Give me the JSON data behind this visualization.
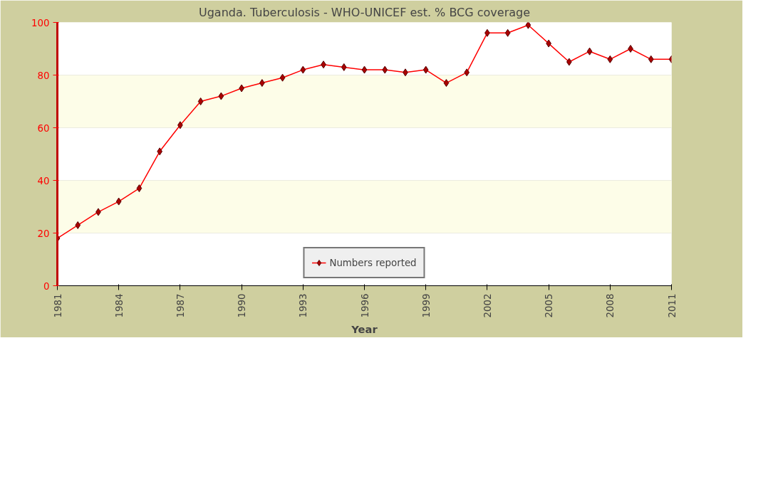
{
  "chart_data": {
    "type": "line",
    "title": "Uganda. Tuberculosis - WHO-UNICEF est. % BCG coverage",
    "xlabel": "Year",
    "x": [
      1981,
      1982,
      1983,
      1984,
      1985,
      1986,
      1987,
      1988,
      1989,
      1990,
      1991,
      1992,
      1993,
      1994,
      1995,
      1996,
      1997,
      1998,
      1999,
      2000,
      2001,
      2002,
      2003,
      2004,
      2005,
      2006,
      2007,
      2008,
      2009,
      2010,
      2011
    ],
    "series": [
      {
        "name": "Numbers reported",
        "color": "#ff0000",
        "values": [
          18,
          23,
          28,
          32,
          37,
          51,
          61,
          70,
          72,
          75,
          77,
          79,
          82,
          84,
          83,
          82,
          82,
          81,
          82,
          77,
          81,
          96,
          96,
          99,
          92,
          85,
          89,
          86,
          90,
          86,
          86
        ]
      }
    ],
    "xlim": [
      1981,
      2011
    ],
    "xticks": [
      1981,
      1984,
      1987,
      1990,
      1993,
      1996,
      1999,
      2002,
      2005,
      2008,
      2011
    ],
    "ylim": [
      0,
      100
    ],
    "yticks": [
      0,
      20,
      40,
      60,
      80,
      100
    ],
    "bands": [
      {
        "axis": "y",
        "from": 20,
        "to": 40,
        "color": "#fdfde8"
      },
      {
        "axis": "y",
        "from": 60,
        "to": 80,
        "color": "#fdfde8"
      }
    ],
    "grid": "y",
    "legend": "bottom",
    "marker": "diamond",
    "line_style": "solid"
  }
}
